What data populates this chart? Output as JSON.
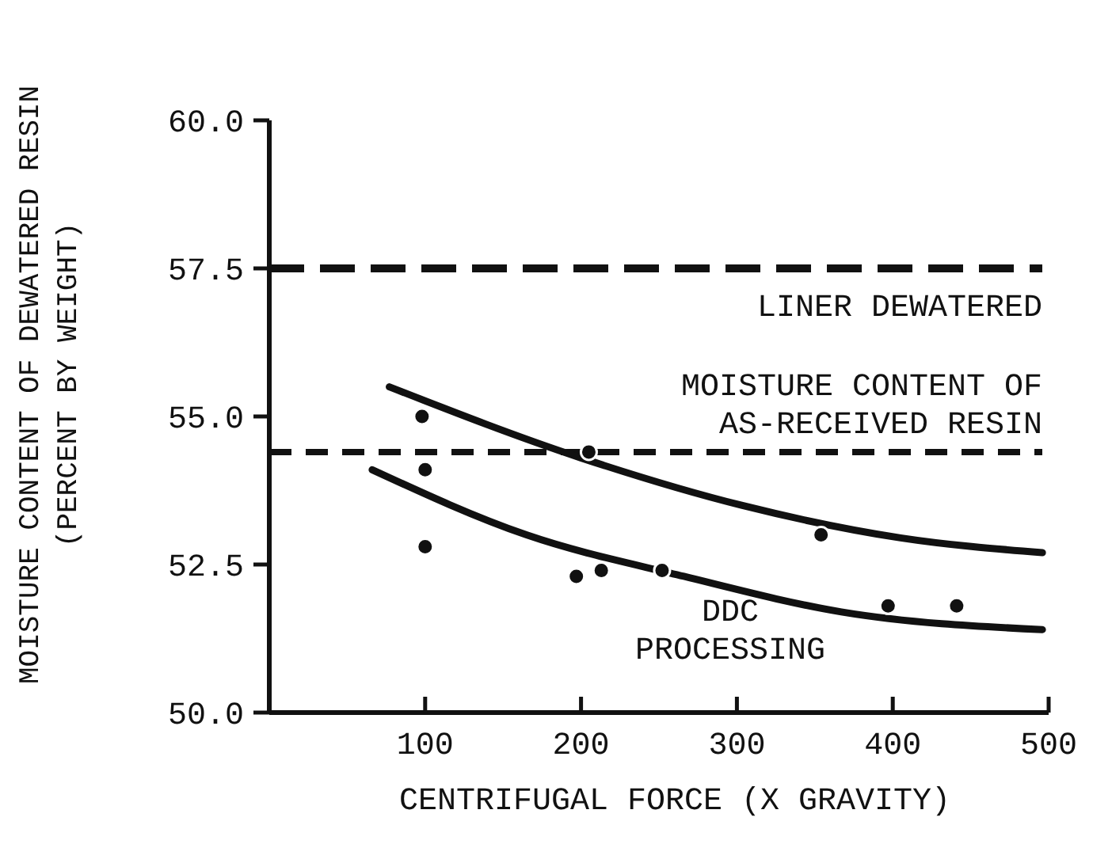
{
  "chart_data": {
    "type": "scatter",
    "xlabel": "CENTRIFUGAL FORCE (X GRAVITY)",
    "ylabel": "MOISTURE CONTENT OF DEWATERED RESIN\n(PERCENT BY WEIGHT)",
    "xlim": [
      0,
      500
    ],
    "xticks": [
      100,
      200,
      300,
      400,
      500
    ],
    "ylim": [
      50,
      60
    ],
    "yticks": [
      {
        "value": 50,
        "label": "50.0"
      },
      {
        "value": 52.5,
        "label": "52.5"
      },
      {
        "value": 55,
        "label": "55.0"
      },
      {
        "value": 57.5,
        "label": "57.5"
      },
      {
        "value": 60,
        "label": "60.0"
      }
    ],
    "grid": false,
    "series": [
      {
        "color": "#111111",
        "marker": "circle",
        "x": [
          98,
          100,
          100,
          197,
          205,
          213,
          252,
          354,
          397,
          441
        ],
        "values": [
          55.0,
          54.1,
          52.8,
          52.3,
          54.4,
          52.4,
          52.4,
          53.0,
          51.8,
          51.8
        ]
      },
      {
        "type": "line",
        "color": "#111111",
        "line_style": "solid",
        "x": [
          77,
          200,
          303,
          405,
          496
        ],
        "values": [
          55.5,
          54.3,
          53.5,
          52.95,
          52.7
        ]
      },
      {
        "type": "line",
        "color": "#111111",
        "line_style": "solid",
        "x": [
          66,
          165,
          266,
          367,
          496
        ],
        "values": [
          54.1,
          53.0,
          52.3,
          51.7,
          51.4
        ]
      }
    ],
    "ref_lines": [
      {
        "axis": "y",
        "value": 57.5,
        "label": "LINER DEWATERED",
        "line_style": "dashed",
        "color": "#111111"
      },
      {
        "axis": "y",
        "value": 54.4,
        "label": "MOISTURE CONTENT OF\nAS-RECEIVED RESIN",
        "line_style": "dashed",
        "color": "#111111"
      }
    ],
    "annotations": [
      "DDC\nPROCESSING"
    ]
  }
}
